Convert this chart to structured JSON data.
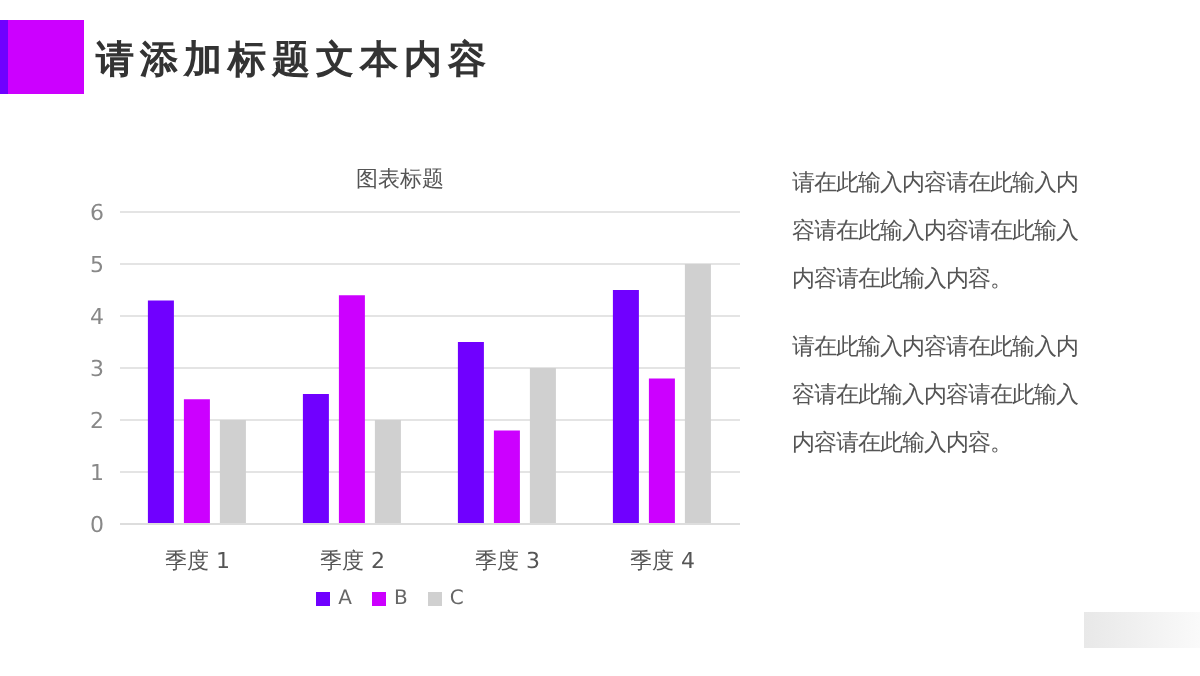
{
  "chart_data": {
    "type": "bar",
    "title": "请添加标题文本内容",
    "subtitle": "图表标题",
    "categories": [
      "季度 1",
      "季度 2",
      "季度 3",
      "季度 4"
    ],
    "series": [
      {
        "name": "A",
        "color": "#7000ff",
        "values": [
          4.3,
          2.5,
          3.5,
          4.5
        ]
      },
      {
        "name": "B",
        "color": "#cc00ff",
        "values": [
          2.4,
          4.4,
          1.8,
          2.8
        ]
      },
      {
        "name": "C",
        "color": "#d0d0d0",
        "values": [
          2,
          2,
          3,
          5
        ]
      }
    ],
    "ylim": [
      0,
      6
    ],
    "yticks": [
      0,
      1,
      2,
      3,
      4,
      5,
      6
    ],
    "grid": "y",
    "legend": "bottom",
    "annotations": [
      "请在此输入内容请在此输入内容请在此输入内容请在此输入内容请在此输入内容。",
      "请在此输入内容请在此输入内容请在此输入内容请在此输入内容请在此输入内容。"
    ]
  }
}
